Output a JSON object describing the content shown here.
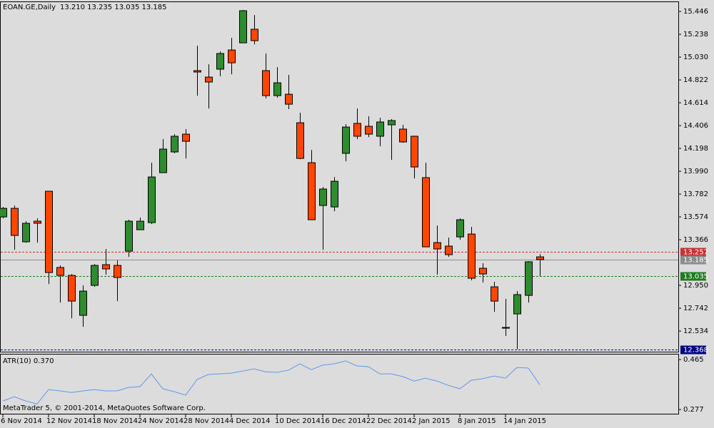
{
  "chart_data": [
    {
      "type": "candlestick",
      "symbol": "EOAN.GE,Daily",
      "quote": "13.210 13.235 13.035 13.185",
      "categories": [
        "6 Nov 2014",
        null,
        null,
        null,
        "12 Nov 2014",
        null,
        null,
        null,
        "18 Nov 2014",
        null,
        null,
        null,
        "24 Nov 2014",
        null,
        null,
        null,
        "28 Nov 2014",
        null,
        null,
        null,
        "4 Dec 2014",
        null,
        null,
        null,
        "10 Dec 2014",
        null,
        null,
        null,
        "16 Dec 2014",
        null,
        null,
        null,
        "22 Dec 2014",
        null,
        null,
        null,
        "2 Jan 2015",
        null,
        null,
        null,
        "8 Jan 2015",
        null,
        null,
        null,
        "14 Jan 2015",
        null,
        null,
        null
      ],
      "open": [
        13.574,
        13.652,
        13.347,
        13.535,
        13.808,
        13.113,
        13.041,
        12.677,
        12.95,
        13.139,
        13.132,
        13.262,
        13.457,
        13.522,
        13.977,
        14.166,
        14.328,
        14.907,
        14.848,
        14.92,
        15.095,
        15.16,
        15.284,
        14.907,
        14.679,
        14.692,
        14.432,
        14.068,
        13.678,
        13.665,
        14.153,
        14.426,
        14.4,
        14.309,
        14.413,
        14.374,
        14.309,
        13.932,
        13.34,
        13.308,
        13.392,
        13.418,
        13.106,
        12.937,
        12.567,
        12.69,
        12.859,
        13.21
      ],
      "high": [
        13.665,
        13.678,
        13.535,
        13.561,
        13.808,
        13.132,
        13.054,
        12.95,
        13.145,
        13.282,
        13.178,
        13.548,
        13.568,
        14.068,
        14.283,
        14.328,
        14.374,
        15.134,
        14.965,
        15.082,
        15.206,
        15.46,
        15.414,
        15.063,
        14.939,
        14.868,
        14.523,
        14.185,
        13.847,
        13.938,
        14.419,
        14.562,
        14.491,
        14.478,
        14.465,
        14.413,
        14.315,
        14.068,
        13.496,
        13.386,
        13.561,
        13.483,
        13.152,
        12.983,
        12.827,
        12.898,
        13.171,
        13.235
      ],
      "low": [
        13.561,
        13.275,
        13.34,
        13.34,
        12.963,
        12.794,
        12.651,
        12.573,
        12.937,
        13.048,
        12.807,
        13.21,
        13.457,
        13.509,
        13.977,
        14.153,
        14.107,
        14.679,
        14.562,
        14.855,
        14.874,
        15.16,
        15.147,
        14.653,
        14.66,
        14.556,
        14.1,
        13.548,
        13.275,
        13.626,
        14.081,
        14.283,
        14.302,
        14.218,
        14.094,
        14.25,
        13.925,
        13.301,
        13.048,
        13.21,
        13.366,
        12.996,
        12.976,
        12.71,
        12.489,
        12.368,
        12.794,
        13.035
      ],
      "close": [
        13.652,
        13.405,
        13.516,
        13.516,
        13.067,
        13.041,
        12.807,
        12.898,
        13.132,
        13.1,
        13.022,
        13.535,
        13.535,
        13.938,
        14.192,
        14.309,
        14.263,
        14.894,
        14.803,
        15.063,
        14.978,
        15.453,
        15.18,
        14.679,
        14.796,
        14.601,
        14.107,
        13.548,
        13.828,
        13.899,
        14.393,
        14.309,
        14.328,
        14.439,
        14.452,
        14.257,
        14.029,
        13.301,
        13.282,
        13.23,
        13.548,
        13.015,
        13.054,
        12.807,
        12.56,
        12.866,
        13.165,
        13.185
      ],
      "up_color": "#2e8b2e",
      "down_color": "#ff4500",
      "ylim": [
        12.346,
        15.531
      ],
      "yticks": [
        15.446,
        15.238,
        {
          "value": 15.03,
          "label": "15.030"
        },
        14.822,
        14.614,
        14.406,
        14.198,
        {
          "value": 13.99,
          "label": "13.990"
        },
        13.782,
        13.574,
        13.366,
        {
          "value": 12.95,
          "label": "12.950"
        },
        12.742,
        12.534
      ],
      "price_lines": [
        {
          "value": 13.257,
          "color": "#c83232",
          "style": "dashed"
        },
        {
          "value": 13.185,
          "color": "#8c8c8c",
          "style": "solid"
        },
        {
          "value": 13.035,
          "color": "#1e7b1e",
          "style": "dashed"
        },
        {
          "value": 12.368,
          "color": "#000080",
          "style": "dashed"
        }
      ],
      "footer": "MetaTrader 5, © 2001-2014, MetaQuotes Software Corp."
    },
    {
      "type": "line",
      "title": "ATR(10) 0.370",
      "color": "#6495ed",
      "values": [
        0.309,
        0.325,
        0.309,
        0.298,
        0.352,
        0.347,
        0.341,
        0.347,
        0.352,
        0.347,
        0.347,
        0.36,
        0.363,
        0.411,
        0.355,
        0.344,
        0.331,
        0.39,
        0.409,
        0.411,
        0.414,
        0.422,
        0.43,
        0.419,
        0.417,
        0.425,
        0.449,
        0.427,
        0.444,
        0.449,
        0.46,
        0.441,
        0.438,
        0.411,
        0.411,
        0.401,
        0.384,
        0.395,
        0.384,
        0.368,
        0.355,
        0.387,
        0.393,
        0.403,
        0.395,
        0.435,
        0.433,
        0.37
      ],
      "ylim": [
        0.261,
        0.484
      ],
      "yticks": [
        0.465,
        0.277
      ]
    }
  ]
}
